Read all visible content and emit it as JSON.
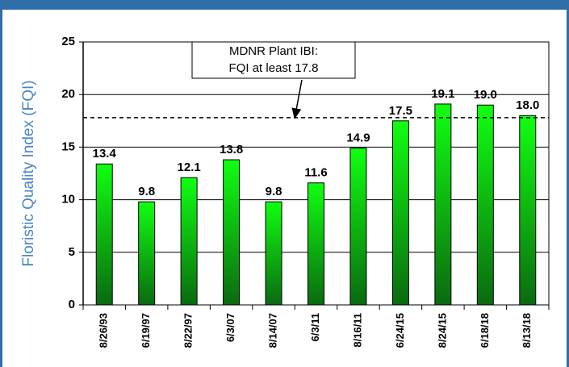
{
  "chart_data": {
    "type": "bar",
    "y_label": "Floristic Quality Index (FQI)",
    "categories": [
      "8/26/93",
      "6/19/97",
      "8/22/97",
      "6/3/07",
      "8/14/07",
      "6/3/11",
      "8/16/11",
      "6/24/15",
      "8/24/15",
      "6/18/18",
      "8/13/18"
    ],
    "values": [
      13.4,
      9.8,
      12.1,
      13.8,
      9.8,
      11.6,
      14.9,
      17.5,
      19.1,
      19.0,
      18.0
    ],
    "value_labels": [
      "13.4",
      "9.8",
      "12.1",
      "13.8",
      "9.8",
      "11.6",
      "14.9",
      "17.5",
      "19.1",
      "19.0",
      "18.0"
    ],
    "color": "#00cc00",
    "ylim": [
      0,
      25
    ],
    "yticks": [
      0,
      5,
      10,
      15,
      20,
      25
    ],
    "grid": true,
    "reference_line": 17.8,
    "annotation": [
      "MDNR Plant IBI:",
      "FQI at least 17.8"
    ]
  }
}
